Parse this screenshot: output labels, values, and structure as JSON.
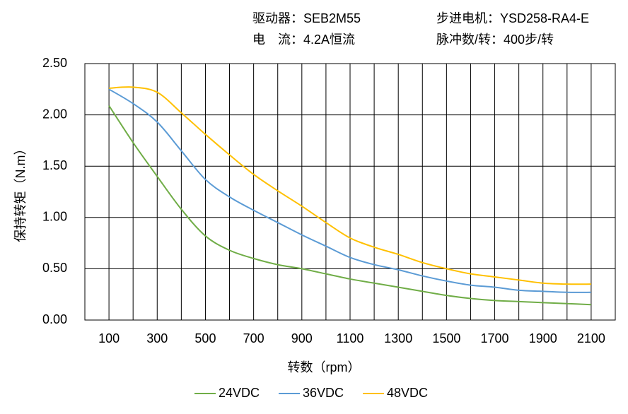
{
  "chart_data": {
    "type": "line",
    "annotations": [
      "驱动器：SEB2M55",
      "步进电机：YSD258-RA4-E",
      "电　流：4.2A恒流",
      "脉冲数/转：400步/转"
    ],
    "x_label": "转数（rpm）",
    "y_label": "保持转矩（N.m）",
    "x": [
      100,
      200,
      300,
      400,
      500,
      600,
      700,
      800,
      900,
      1000,
      1100,
      1200,
      1300,
      1400,
      1500,
      1600,
      1700,
      1800,
      1900,
      2000,
      2100
    ],
    "series": [
      {
        "name": "24VDC",
        "color": "#70ad47",
        "values": [
          2.09,
          1.73,
          1.4,
          1.08,
          0.82,
          0.68,
          0.6,
          0.54,
          0.5,
          0.45,
          0.4,
          0.36,
          0.32,
          0.28,
          0.24,
          0.21,
          0.19,
          0.18,
          0.17,
          0.16,
          0.15
        ]
      },
      {
        "name": "36VDC",
        "color": "#5b9bd5",
        "values": [
          2.25,
          2.11,
          1.93,
          1.65,
          1.37,
          1.2,
          1.07,
          0.95,
          0.83,
          0.72,
          0.61,
          0.54,
          0.49,
          0.43,
          0.38,
          0.34,
          0.32,
          0.29,
          0.28,
          0.27,
          0.27
        ]
      },
      {
        "name": "48VDC",
        "color": "#ffc000",
        "values": [
          2.26,
          2.27,
          2.22,
          2.02,
          1.81,
          1.61,
          1.42,
          1.26,
          1.11,
          0.95,
          0.8,
          0.71,
          0.64,
          0.56,
          0.5,
          0.45,
          0.42,
          0.39,
          0.36,
          0.35,
          0.35
        ]
      }
    ],
    "xlim": [
      0,
      2200
    ],
    "xticks": [
      100,
      300,
      500,
      700,
      900,
      1100,
      1300,
      1500,
      1700,
      1900,
      2100
    ],
    "minor_xticks": [
      200,
      400,
      600,
      800,
      1000,
      1200,
      1400,
      1600,
      1800,
      2000
    ],
    "ylim": [
      0,
      2.5
    ],
    "yticks": [
      {
        "value": 0,
        "label": "0.00"
      },
      {
        "value": 0.5,
        "label": "0.50"
      },
      {
        "value": 1,
        "label": "1.00"
      },
      {
        "value": 1.5,
        "label": "1.50"
      },
      {
        "value": 2,
        "label": "2.00"
      },
      {
        "value": 2.5,
        "label": "2.50"
      }
    ],
    "grid": true,
    "legend": "bottom"
  }
}
